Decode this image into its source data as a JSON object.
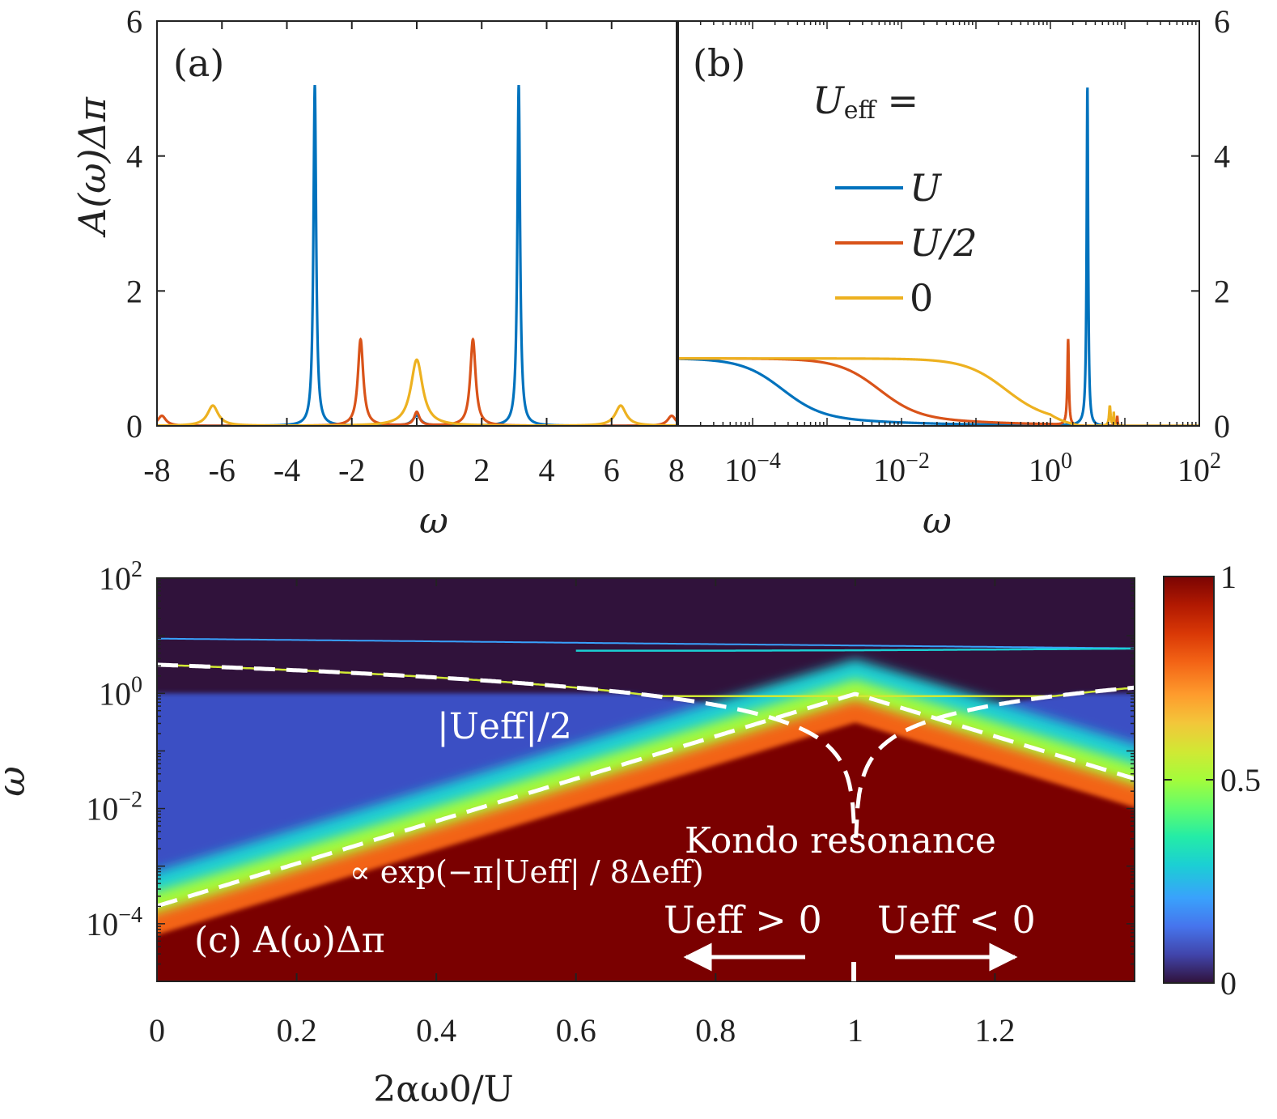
{
  "chart_data": [
    {
      "panel": "(a)",
      "type": "line",
      "xlabel": "ω",
      "ylabel": "A(ω)Δπ",
      "xlim": [
        -8,
        8
      ],
      "ylim": [
        0,
        6
      ],
      "xticks": [
        "-8",
        "-6",
        "-4",
        "-2",
        "0",
        "2",
        "4",
        "6",
        "8"
      ],
      "yticks": [
        "0",
        "2",
        "4",
        "6"
      ],
      "series": [
        {
          "name": "U",
          "color": "#0072BD",
          "peaks": [
            {
              "x": -3.14,
              "h": 5.05,
              "w": 0.05
            },
            {
              "x": 3.14,
              "h": 5.05,
              "w": 0.05
            },
            {
              "x": 0,
              "h": 0.15,
              "w": 0.15
            }
          ]
        },
        {
          "name": "U/2",
          "color": "#D95319",
          "peaks": [
            {
              "x": -1.73,
              "h": 1.28,
              "w": 0.1
            },
            {
              "x": 1.73,
              "h": 1.28,
              "w": 0.1
            },
            {
              "x": -7.85,
              "h": 0.15,
              "w": 0.15
            },
            {
              "x": 7.85,
              "h": 0.15,
              "w": 0.15
            },
            {
              "x": 0,
              "h": 0.2,
              "w": 0.1
            }
          ]
        },
        {
          "name": "0",
          "color": "#EDB120",
          "peaks": [
            {
              "x": 0,
              "h": 0.98,
              "w": 0.22
            },
            {
              "x": -6.28,
              "h": 0.3,
              "w": 0.2
            },
            {
              "x": 6.28,
              "h": 0.3,
              "w": 0.2
            }
          ]
        }
      ]
    },
    {
      "panel": "(b)",
      "type": "line",
      "xscale": "log",
      "xlabel": "ω",
      "xlim": [
        1e-05,
        100
      ],
      "ylim": [
        0,
        6
      ],
      "xticks": [
        {
          "base": "10",
          "exp": "−4"
        },
        {
          "base": "10",
          "exp": "−2"
        },
        {
          "base": "10",
          "exp": "0"
        },
        {
          "base": "10",
          "exp": "2"
        }
      ],
      "yticks": [
        "0",
        "2",
        "4",
        "6"
      ],
      "legend_title_main": "U",
      "legend_title_sub": "eff",
      "legend_title_tail": " =",
      "legend_position": "top-right",
      "series": [
        {
          "name": "U",
          "color": "#0072BD",
          "kondo_scale_log10": -3.6,
          "peak_x": 3.14,
          "peak_h": 5.05
        },
        {
          "name": "U/2",
          "color": "#D95319",
          "kondo_scale_log10": -2.3,
          "peak_x": 1.73,
          "peak_h": 1.28
        },
        {
          "name": "0",
          "color": "#EDB120",
          "kondo_scale_log10": -0.6,
          "peak_x": 6.28,
          "peak_h": 0.3
        }
      ]
    },
    {
      "panel": "(c)",
      "type": "heatmap",
      "title": "(c) A(ω)Δπ",
      "xlabel": "2αω0/U",
      "ylabel": "ω",
      "xlim": [
        0,
        1.4
      ],
      "yscale": "log",
      "ylim": [
        1e-05,
        100
      ],
      "xticks": [
        "0",
        "0.2",
        "0.4",
        "0.6",
        "0.8",
        "1",
        "1.2"
      ],
      "yticks": [
        {
          "base": "10",
          "exp": "2"
        },
        {
          "base": "10",
          "exp": "0"
        },
        {
          "base": "10",
          "exp": "−2"
        },
        {
          "base": "10",
          "exp": "−4"
        }
      ],
      "colorbar": {
        "range": [
          0,
          1
        ],
        "ticks": [
          "0",
          "0.5",
          "1"
        ]
      },
      "annotations": {
        "ueff_half": "|Ueff|/2",
        "kondo": "Kondo resonance",
        "exp_formula": "∝ exp(−π|Ueff| / 8Δeff)",
        "ueff_pos": "Ueff > 0",
        "ueff_neg": "Ueff < 0"
      }
    }
  ]
}
